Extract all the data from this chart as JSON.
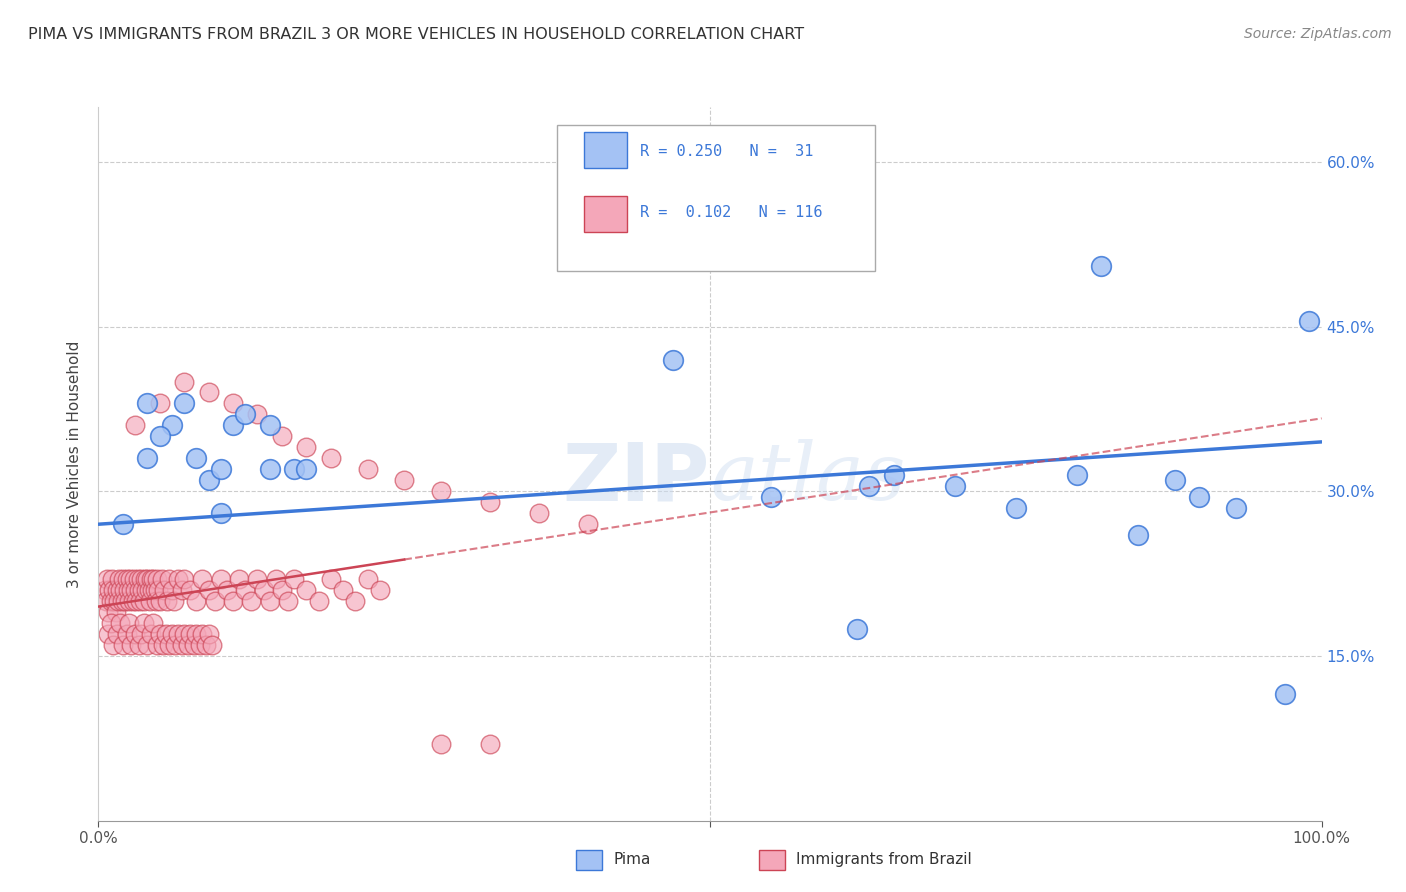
{
  "title": "PIMA VS IMMIGRANTS FROM BRAZIL 3 OR MORE VEHICLES IN HOUSEHOLD CORRELATION CHART",
  "source": "Source: ZipAtlas.com",
  "ylabel": "3 or more Vehicles in Household",
  "xlim": [
    0,
    1.0
  ],
  "ylim": [
    0,
    0.65
  ],
  "yticks": [
    0.15,
    0.3,
    0.45,
    0.6
  ],
  "ytick_labels": [
    "15.0%",
    "30.0%",
    "45.0%",
    "60.0%"
  ],
  "legend_R1": "0.250",
  "legend_N1": "31",
  "legend_R2": "0.102",
  "legend_N2": "116",
  "color_blue": "#a4c2f4",
  "color_pink": "#f4a7b9",
  "line_color_blue": "#3c78d8",
  "line_color_pink": "#cc4455",
  "watermark": "ZIPatlas",
  "pima_x": [
    0.02,
    0.04,
    0.06,
    0.04,
    0.05,
    0.07,
    0.08,
    0.09,
    0.1,
    0.11,
    0.12,
    0.14,
    0.14,
    0.1,
    0.16,
    0.17,
    0.47,
    0.7,
    0.75,
    0.8,
    0.82,
    0.85,
    0.88,
    0.9,
    0.93,
    0.97,
    0.62,
    0.63,
    0.65,
    0.55,
    0.99
  ],
  "pima_y": [
    0.27,
    0.33,
    0.36,
    0.38,
    0.35,
    0.38,
    0.33,
    0.31,
    0.32,
    0.36,
    0.37,
    0.36,
    0.32,
    0.28,
    0.32,
    0.32,
    0.42,
    0.305,
    0.285,
    0.315,
    0.505,
    0.26,
    0.31,
    0.295,
    0.285,
    0.115,
    0.175,
    0.305,
    0.315,
    0.295,
    0.455
  ],
  "brazil_x": [
    0.005,
    0.006,
    0.007,
    0.008,
    0.009,
    0.01,
    0.011,
    0.012,
    0.013,
    0.014,
    0.015,
    0.016,
    0.017,
    0.018,
    0.019,
    0.02,
    0.021,
    0.022,
    0.023,
    0.024,
    0.025,
    0.026,
    0.027,
    0.028,
    0.029,
    0.03,
    0.031,
    0.032,
    0.033,
    0.034,
    0.035,
    0.036,
    0.037,
    0.038,
    0.039,
    0.04,
    0.041,
    0.042,
    0.043,
    0.044,
    0.045,
    0.046,
    0.047,
    0.048,
    0.049,
    0.05,
    0.052,
    0.054,
    0.056,
    0.058,
    0.06,
    0.062,
    0.065,
    0.068,
    0.07,
    0.075,
    0.08,
    0.085,
    0.09,
    0.095,
    0.1,
    0.105,
    0.11,
    0.115,
    0.12,
    0.125,
    0.13,
    0.135,
    0.14,
    0.145,
    0.15,
    0.155,
    0.16,
    0.17,
    0.18,
    0.19,
    0.2,
    0.21,
    0.22,
    0.23,
    0.008,
    0.01,
    0.012,
    0.015,
    0.018,
    0.02,
    0.023,
    0.025,
    0.027,
    0.03,
    0.033,
    0.035,
    0.037,
    0.04,
    0.043,
    0.045,
    0.048,
    0.05,
    0.053,
    0.055,
    0.058,
    0.06,
    0.063,
    0.065,
    0.068,
    0.07,
    0.073,
    0.075,
    0.078,
    0.08,
    0.083,
    0.085,
    0.088,
    0.09,
    0.093,
    0.28
  ],
  "brazil_y": [
    0.21,
    0.2,
    0.22,
    0.19,
    0.21,
    0.2,
    0.22,
    0.21,
    0.2,
    0.19,
    0.21,
    0.2,
    0.22,
    0.21,
    0.2,
    0.22,
    0.21,
    0.2,
    0.22,
    0.21,
    0.2,
    0.22,
    0.21,
    0.2,
    0.22,
    0.21,
    0.2,
    0.22,
    0.21,
    0.2,
    0.22,
    0.21,
    0.2,
    0.22,
    0.21,
    0.22,
    0.21,
    0.2,
    0.22,
    0.21,
    0.22,
    0.21,
    0.2,
    0.22,
    0.21,
    0.2,
    0.22,
    0.21,
    0.2,
    0.22,
    0.21,
    0.2,
    0.22,
    0.21,
    0.22,
    0.21,
    0.2,
    0.22,
    0.21,
    0.2,
    0.22,
    0.21,
    0.2,
    0.22,
    0.21,
    0.2,
    0.22,
    0.21,
    0.2,
    0.22,
    0.21,
    0.2,
    0.22,
    0.21,
    0.2,
    0.22,
    0.21,
    0.2,
    0.22,
    0.21,
    0.17,
    0.18,
    0.16,
    0.17,
    0.18,
    0.16,
    0.17,
    0.18,
    0.16,
    0.17,
    0.16,
    0.17,
    0.18,
    0.16,
    0.17,
    0.18,
    0.16,
    0.17,
    0.16,
    0.17,
    0.16,
    0.17,
    0.16,
    0.17,
    0.16,
    0.17,
    0.16,
    0.17,
    0.16,
    0.17,
    0.16,
    0.17,
    0.16,
    0.17,
    0.16,
    0.07
  ],
  "brazil_extra_x": [
    0.03,
    0.05,
    0.07,
    0.09,
    0.11,
    0.13,
    0.15,
    0.17,
    0.19,
    0.22,
    0.25,
    0.28,
    0.32,
    0.36,
    0.4,
    0.32
  ],
  "brazil_extra_y": [
    0.36,
    0.38,
    0.4,
    0.39,
    0.38,
    0.37,
    0.35,
    0.34,
    0.33,
    0.32,
    0.31,
    0.3,
    0.29,
    0.28,
    0.27,
    0.07
  ],
  "pima_line_x0": 0.0,
  "pima_line_y0": 0.27,
  "pima_line_x1": 1.0,
  "pima_line_y1": 0.345,
  "brazil_line_x0": 0.0,
  "brazil_line_y0": 0.195,
  "brazil_line_x1": 0.35,
  "brazil_line_y1": 0.255
}
